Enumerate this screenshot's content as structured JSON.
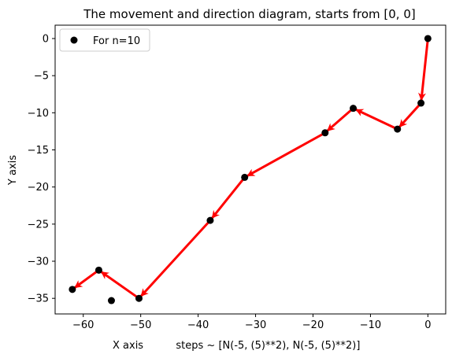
{
  "chart_data": {
    "type": "scatter",
    "title": "The movement and direction diagram, starts from [0, 0]",
    "xlabel": "X axis          steps ~ [N(-5, (5)**2), N(-5, (5)**2)]",
    "ylabel": "Y axis",
    "xlim": [
      -64.9,
      3.1
    ],
    "ylim": [
      -37.1,
      1.8
    ],
    "xticks": [
      -60,
      -50,
      -40,
      -30,
      -20,
      -10,
      0
    ],
    "yticks": [
      -35,
      -30,
      -25,
      -20,
      -15,
      -10,
      -5,
      0
    ],
    "tick_labels_x": [
      "−60",
      "−50",
      "−40",
      "−30",
      "−20",
      "−10",
      "0"
    ],
    "tick_labels_y": [
      "−35",
      "−30",
      "−25",
      "−20",
      "−15",
      "−10",
      "−5",
      "0"
    ],
    "grid": false,
    "legend": {
      "placement": "top-left",
      "entries": [
        "For n=10"
      ]
    },
    "marker_color": "#000000",
    "arrow_color": "#ff0000",
    "points": [
      {
        "x": 0.0,
        "y": 0.0
      },
      {
        "x": -1.2,
        "y": -8.7
      },
      {
        "x": -5.3,
        "y": -12.2
      },
      {
        "x": -13.0,
        "y": -9.4
      },
      {
        "x": -17.9,
        "y": -12.7
      },
      {
        "x": -31.9,
        "y": -18.7
      },
      {
        "x": -37.9,
        "y": -24.5
      },
      {
        "x": -50.3,
        "y": -35.0
      },
      {
        "x": -57.3,
        "y": -31.2
      },
      {
        "x": -61.9,
        "y": -33.8
      },
      {
        "x": -55.1,
        "y": -35.3
      }
    ],
    "arrow_path_order": [
      0,
      1,
      2,
      3,
      4,
      5,
      6,
      7,
      8,
      9
    ]
  }
}
